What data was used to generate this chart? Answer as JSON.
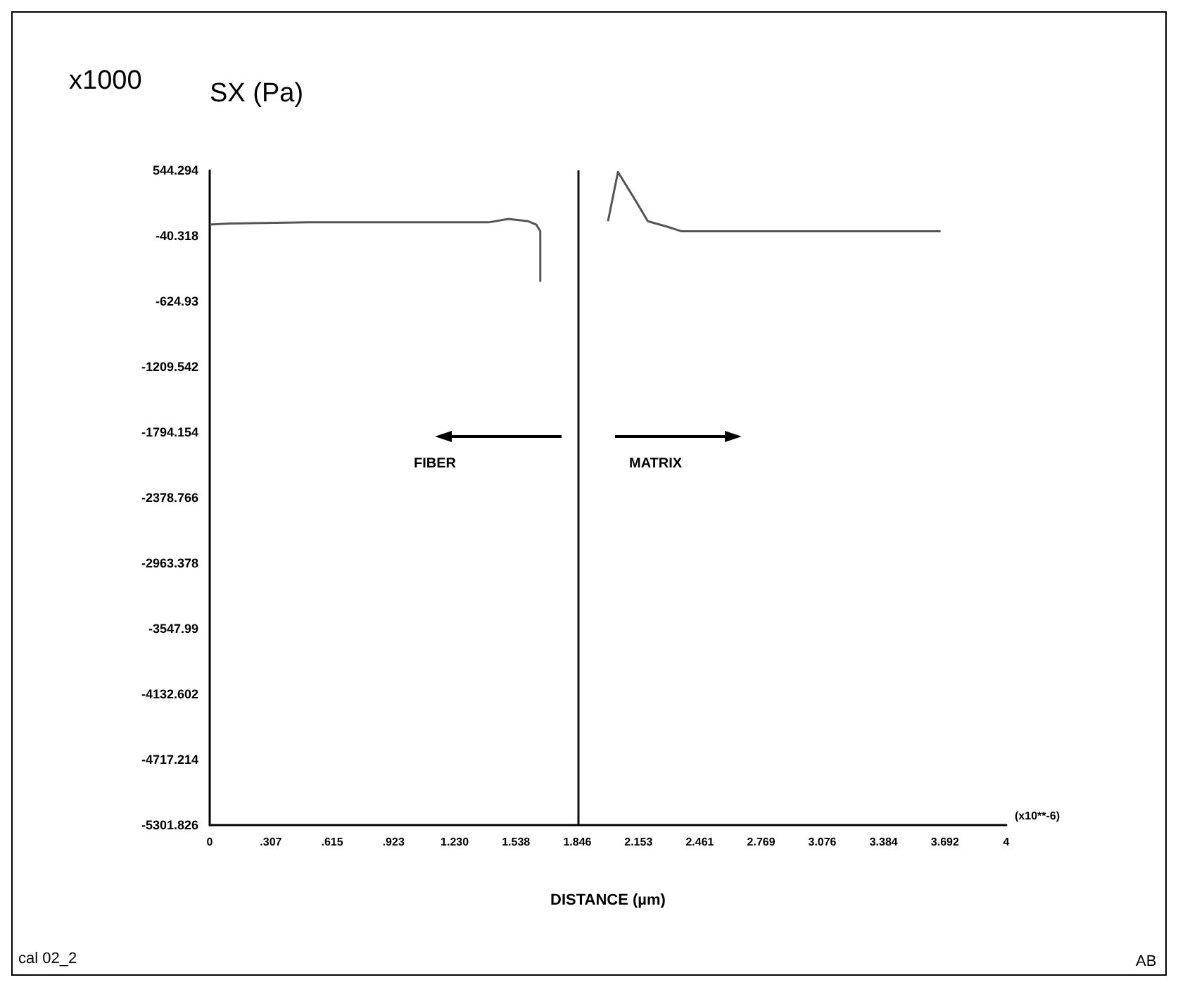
{
  "chart_data": {
    "type": "line",
    "ylabel": "SX (Pa)",
    "xlabel": "DISTANCE (µm)",
    "annotations": [
      "x1000",
      "FIBER",
      "MATRIX",
      "(x10**-6)",
      "cal 02_2",
      "AB"
    ],
    "series": [
      {
        "color": "#555555",
        "x": [
          0,
          0.1,
          0.5,
          1.0,
          1.4,
          1.5,
          1.6,
          1.64,
          1.66,
          1.66
        ],
        "values": [
          60,
          70,
          80,
          80,
          80,
          110,
          90,
          60,
          0,
          -450
        ]
      },
      {
        "color": "#555555",
        "x": [
          2.0,
          2.05,
          2.14,
          2.2,
          2.3,
          2.37,
          3.0,
          3.67
        ],
        "values": [
          90,
          530,
          270,
          90,
          40,
          0,
          0,
          0
        ]
      }
    ],
    "ref_lines": [
      {
        "axis": "x",
        "value": 1.846,
        "label": null,
        "color": "#111111"
      }
    ],
    "xlim": [
      0,
      4
    ],
    "xticks": [
      0,
      {
        "value": 0.307,
        "label": ".307"
      },
      {
        "value": 0.615,
        "label": ".615"
      },
      {
        "value": 0.923,
        "label": ".923"
      },
      {
        "value": 1.23,
        "label": "1.230"
      },
      {
        "value": 1.538,
        "label": "1.538"
      },
      {
        "value": 1.846,
        "label": "1.846"
      },
      {
        "value": 2.153,
        "label": "2.153"
      },
      {
        "value": 2.461,
        "label": "2.461"
      },
      {
        "value": 2.769,
        "label": "2.769"
      },
      {
        "value": 3.076,
        "label": "3.076"
      },
      {
        "value": 3.384,
        "label": "3.384"
      },
      {
        "value": 3.692,
        "label": "3.692"
      },
      4
    ],
    "ylim": [
      -5301.826,
      544.294
    ],
    "yticks": [
      544.294,
      -40.318,
      -624.93,
      -1209.542,
      -1794.154,
      -2378.766,
      -2963.378,
      -3547.99,
      -4132.602,
      -4717.214,
      -5301.826
    ],
    "grid": false,
    "marker": "none",
    "line_style": "solid"
  }
}
